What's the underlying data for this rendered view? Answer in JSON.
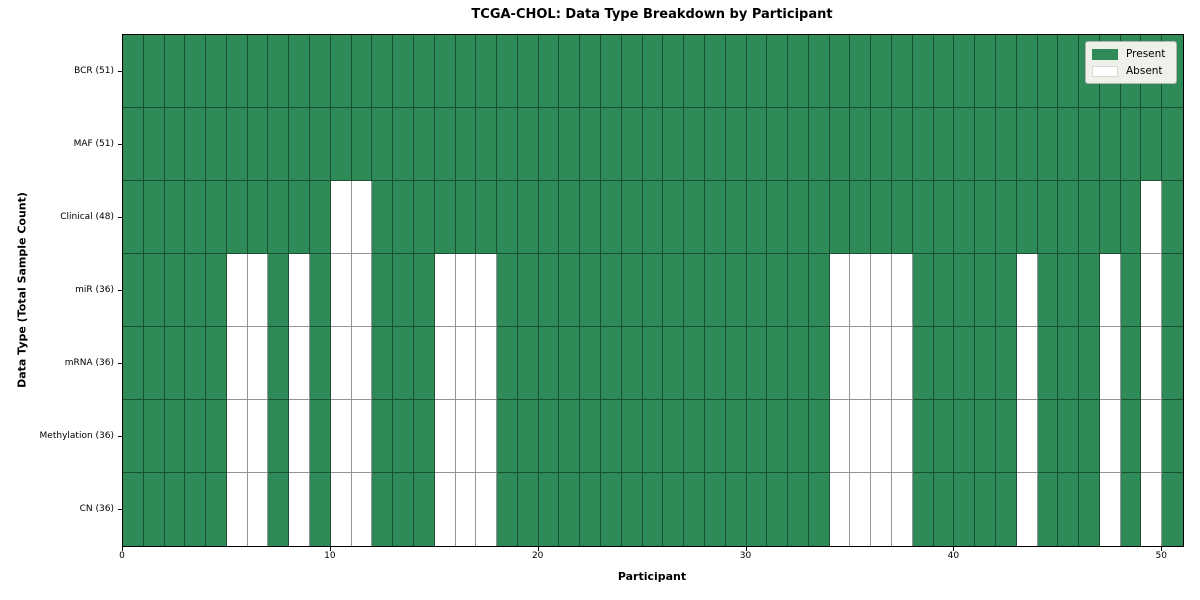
{
  "figure": {
    "title": "TCGA-CHOL: Data Type Breakdown by Participant",
    "xlabel": "Participant",
    "ylabel": "Data Type (Total Sample Count)"
  },
  "legend": {
    "items": [
      {
        "label": "Present",
        "color_key": "present"
      },
      {
        "label": "Absent",
        "color_key": "absent"
      }
    ]
  },
  "colors": {
    "present": "#2e8b57",
    "absent": "#ffffff",
    "cell_edge": "rgba(0,0,0,0.42)",
    "legend_bg": "#eef1ea",
    "legend_border": "#b3b3b3"
  },
  "chart_data": {
    "type": "heatmap",
    "title": "TCGA-CHOL: Data Type Breakdown by Participant",
    "xlabel": "Participant",
    "ylabel": "Data Type (Total Sample Count)",
    "legend": [
      "Present",
      "Absent"
    ],
    "legend_position": "upper right",
    "n_participants": 51,
    "x_range": [
      0,
      51
    ],
    "x_ticks": [
      0,
      10,
      20,
      30,
      40,
      50
    ],
    "grid": true,
    "rows": [
      {
        "label": "BCR (51)",
        "present_count": 51,
        "absent_participants": []
      },
      {
        "label": "MAF (51)",
        "present_count": 51,
        "absent_participants": []
      },
      {
        "label": "Clinical (48)",
        "present_count": 48,
        "absent_participants": [
          10,
          11,
          49
        ]
      },
      {
        "label": "miR (36)",
        "present_count": 36,
        "absent_participants": [
          5,
          6,
          8,
          10,
          11,
          15,
          16,
          17,
          34,
          35,
          36,
          37,
          43,
          47,
          49
        ]
      },
      {
        "label": "mRNA (36)",
        "present_count": 36,
        "absent_participants": [
          5,
          6,
          8,
          10,
          11,
          15,
          16,
          17,
          34,
          35,
          36,
          37,
          43,
          47,
          49
        ]
      },
      {
        "label": "Methylation (36)",
        "present_count": 36,
        "absent_participants": [
          5,
          6,
          8,
          10,
          11,
          15,
          16,
          17,
          34,
          35,
          36,
          37,
          43,
          47,
          49
        ]
      },
      {
        "label": "CN (36)",
        "present_count": 36,
        "absent_participants": [
          5,
          6,
          8,
          10,
          11,
          15,
          16,
          17,
          34,
          35,
          36,
          37,
          43,
          47,
          49
        ]
      }
    ]
  }
}
